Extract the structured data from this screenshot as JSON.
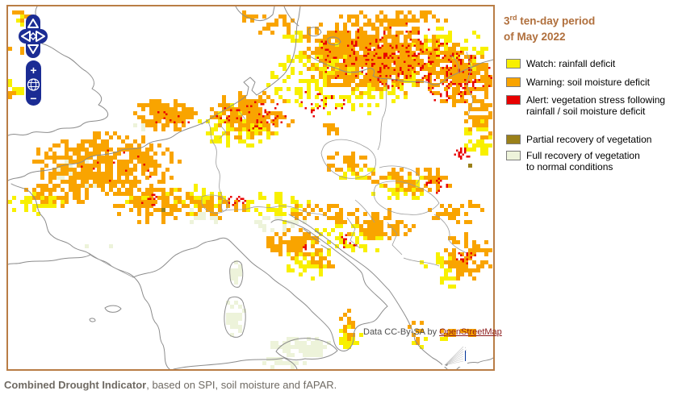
{
  "legend": {
    "title": {
      "num": "3",
      "sup": "rd",
      "rest": " ten-day period",
      "line2": "of May 2022"
    },
    "items": [
      {
        "label": "Watch: rainfall deficit",
        "color": "#f8f000"
      },
      {
        "label": "Warning: soil moisture deficit",
        "color": "#f9a400"
      },
      {
        "label": "Alert: vegetation stress following\nrainfall / soil moisture deficit",
        "color": "#e80000"
      },
      {
        "label": "Partial recovery of vegetation",
        "color": "#9a8019"
      },
      {
        "label": "Full recovery of vegetation\nto normal conditions",
        "color": "#edf3da"
      }
    ]
  },
  "map": {
    "attribution": {
      "prefix": "Data CC-By-SA by ",
      "link": "OpenStreetMap"
    },
    "controls": {
      "zoom_in": "+",
      "zoom_out": "−"
    }
  },
  "caption": {
    "bold": "Combined Drought Indicator",
    "rest": ", based on SPI, soil moisture and fAPAR."
  },
  "colors": {
    "watch_yellow": "#f8f000",
    "warning_orange": "#f9a400",
    "alert_red": "#e80000",
    "partial_olive": "#9a8019",
    "full_pale_green": "#edf3da",
    "map_border": "#b97d45",
    "coastline_gray": "#8c8c8c",
    "title_brown": "#b06f3c",
    "control_navy": "#1b2c94",
    "link_maroon": "#8b1a1a",
    "caption_gray": "#6f6a63"
  }
}
